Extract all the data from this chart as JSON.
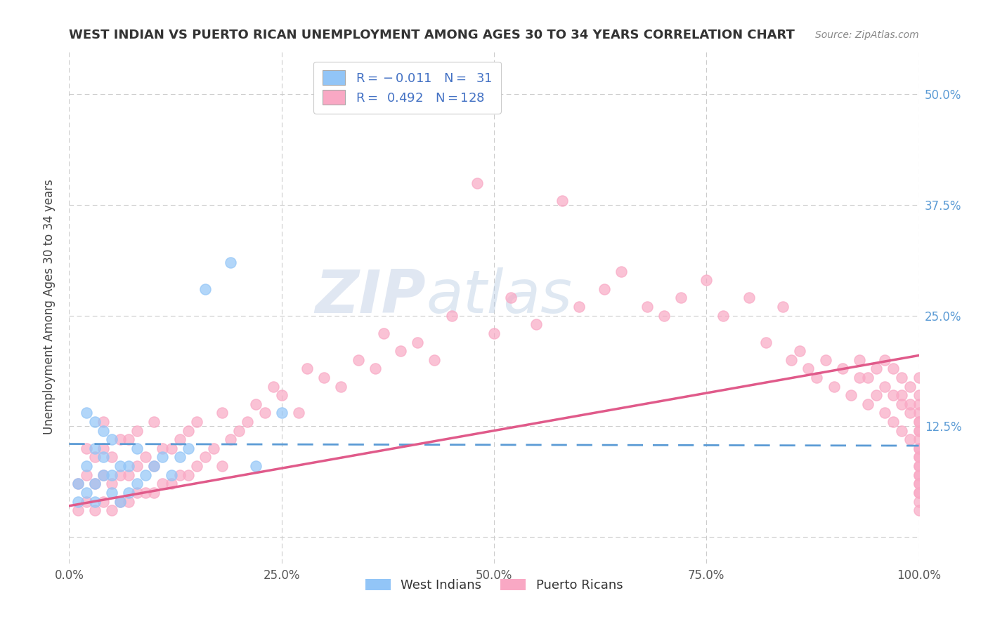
{
  "title": "WEST INDIAN VS PUERTO RICAN UNEMPLOYMENT AMONG AGES 30 TO 34 YEARS CORRELATION CHART",
  "source": "Source: ZipAtlas.com",
  "ylabel": "Unemployment Among Ages 30 to 34 years",
  "xlim": [
    0.0,
    1.0
  ],
  "ylim": [
    -0.03,
    0.55
  ],
  "xticks": [
    0.0,
    0.25,
    0.5,
    0.75,
    1.0
  ],
  "xticklabels": [
    "0.0%",
    "25.0%",
    "50.0%",
    "75.0%",
    "100.0%"
  ],
  "yticks": [
    0.0,
    0.125,
    0.25,
    0.375,
    0.5
  ],
  "yticklabels": [
    "",
    "12.5%",
    "25.0%",
    "37.5%",
    "50.0%"
  ],
  "color_west_indian": "#92c5f7",
  "color_puerto_rican": "#f9a8c4",
  "color_west_indian_line": "#5b9bd5",
  "color_puerto_rican_line": "#e05a8a",
  "background_color": "#ffffff",
  "wi_R": -0.011,
  "wi_N": 31,
  "pr_R": 0.492,
  "pr_N": 128,
  "west_indian_x": [
    0.01,
    0.01,
    0.02,
    0.02,
    0.02,
    0.03,
    0.03,
    0.03,
    0.03,
    0.04,
    0.04,
    0.04,
    0.05,
    0.05,
    0.05,
    0.06,
    0.06,
    0.07,
    0.07,
    0.08,
    0.08,
    0.09,
    0.1,
    0.11,
    0.12,
    0.13,
    0.14,
    0.16,
    0.19,
    0.22,
    0.25
  ],
  "west_indian_y": [
    0.04,
    0.06,
    0.05,
    0.08,
    0.14,
    0.04,
    0.06,
    0.1,
    0.13,
    0.07,
    0.09,
    0.12,
    0.05,
    0.07,
    0.11,
    0.04,
    0.08,
    0.05,
    0.08,
    0.06,
    0.1,
    0.07,
    0.08,
    0.09,
    0.07,
    0.09,
    0.1,
    0.28,
    0.31,
    0.08,
    0.14
  ],
  "puerto_rican_x": [
    0.01,
    0.01,
    0.02,
    0.02,
    0.02,
    0.03,
    0.03,
    0.03,
    0.04,
    0.04,
    0.04,
    0.04,
    0.05,
    0.05,
    0.05,
    0.06,
    0.06,
    0.06,
    0.07,
    0.07,
    0.07,
    0.08,
    0.08,
    0.08,
    0.09,
    0.09,
    0.1,
    0.1,
    0.1,
    0.11,
    0.11,
    0.12,
    0.12,
    0.13,
    0.13,
    0.14,
    0.14,
    0.15,
    0.15,
    0.16,
    0.17,
    0.18,
    0.18,
    0.19,
    0.2,
    0.21,
    0.22,
    0.23,
    0.24,
    0.25,
    0.27,
    0.28,
    0.3,
    0.32,
    0.34,
    0.36,
    0.37,
    0.39,
    0.41,
    0.43,
    0.45,
    0.48,
    0.5,
    0.52,
    0.55,
    0.58,
    0.6,
    0.63,
    0.65,
    0.68,
    0.7,
    0.72,
    0.75,
    0.77,
    0.8,
    0.82,
    0.84,
    0.85,
    0.86,
    0.87,
    0.88,
    0.89,
    0.9,
    0.91,
    0.92,
    0.93,
    0.93,
    0.94,
    0.94,
    0.95,
    0.95,
    0.96,
    0.96,
    0.96,
    0.97,
    0.97,
    0.97,
    0.98,
    0.98,
    0.98,
    0.98,
    0.99,
    0.99,
    0.99,
    0.99,
    1.0,
    1.0,
    1.0,
    1.0,
    1.0,
    1.0,
    1.0,
    1.0,
    1.0,
    1.0,
    1.0,
    1.0,
    1.0,
    1.0,
    1.0,
    1.0,
    1.0,
    1.0,
    1.0,
    1.0,
    1.0,
    1.0,
    1.0
  ],
  "puerto_rican_y": [
    0.03,
    0.06,
    0.04,
    0.07,
    0.1,
    0.03,
    0.06,
    0.09,
    0.04,
    0.07,
    0.1,
    0.13,
    0.03,
    0.06,
    0.09,
    0.04,
    0.07,
    0.11,
    0.04,
    0.07,
    0.11,
    0.05,
    0.08,
    0.12,
    0.05,
    0.09,
    0.05,
    0.08,
    0.13,
    0.06,
    0.1,
    0.06,
    0.1,
    0.07,
    0.11,
    0.07,
    0.12,
    0.08,
    0.13,
    0.09,
    0.1,
    0.08,
    0.14,
    0.11,
    0.12,
    0.13,
    0.15,
    0.14,
    0.17,
    0.16,
    0.14,
    0.19,
    0.18,
    0.17,
    0.2,
    0.19,
    0.23,
    0.21,
    0.22,
    0.2,
    0.25,
    0.4,
    0.23,
    0.27,
    0.24,
    0.38,
    0.26,
    0.28,
    0.3,
    0.26,
    0.25,
    0.27,
    0.29,
    0.25,
    0.27,
    0.22,
    0.26,
    0.2,
    0.21,
    0.19,
    0.18,
    0.2,
    0.17,
    0.19,
    0.16,
    0.18,
    0.2,
    0.15,
    0.18,
    0.16,
    0.19,
    0.14,
    0.17,
    0.2,
    0.13,
    0.16,
    0.19,
    0.15,
    0.18,
    0.12,
    0.16,
    0.14,
    0.17,
    0.11,
    0.15,
    0.18,
    0.13,
    0.16,
    0.12,
    0.15,
    0.1,
    0.14,
    0.12,
    0.09,
    0.13,
    0.11,
    0.08,
    0.1,
    0.07,
    0.09,
    0.06,
    0.08,
    0.05,
    0.07,
    0.04,
    0.06,
    0.03,
    0.05
  ]
}
